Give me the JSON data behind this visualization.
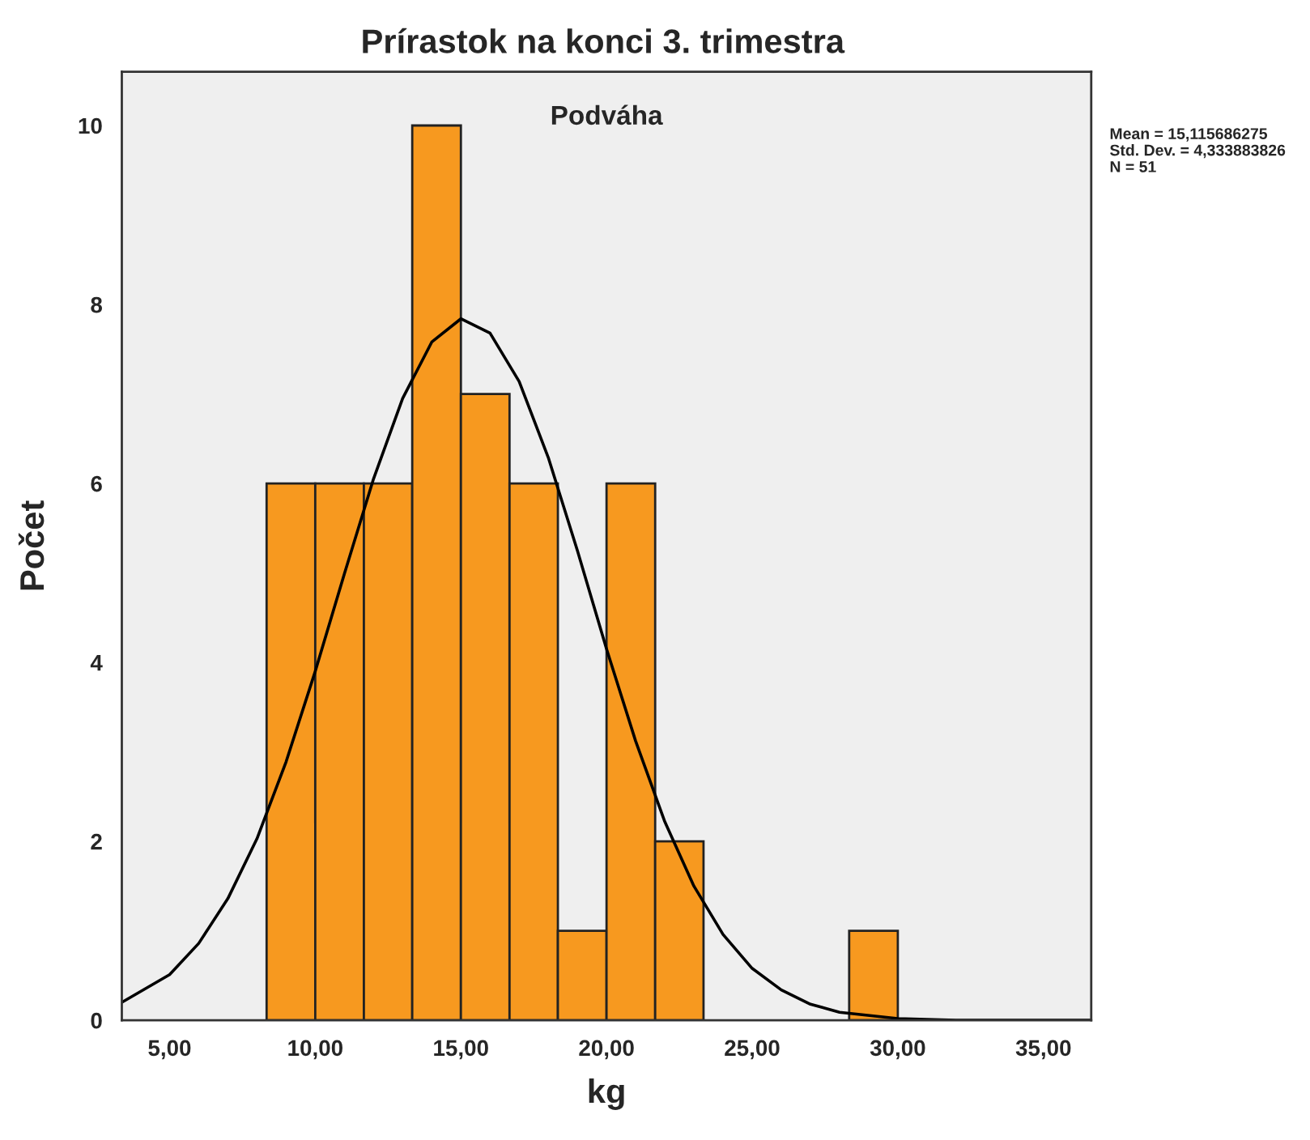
{
  "chart_data": {
    "type": "histogram",
    "title": "Prírastok na konci 3. trimestra",
    "xlabel": "kg",
    "ylabel": "Počet",
    "bins": [
      8.33,
      10,
      11.67,
      13.33,
      15,
      16.67,
      18.33,
      20,
      21.67,
      23.33,
      25,
      26.67,
      28.33,
      30
    ],
    "values": [
      6,
      6,
      6,
      10,
      7,
      6,
      1,
      6,
      2,
      0,
      0,
      0,
      1
    ],
    "color": "#f7991f",
    "series": [
      {
        "type": "line",
        "color": "#000000",
        "x": [
          3.36,
          5,
          6,
          7,
          8,
          9,
          10,
          11,
          12,
          13,
          14,
          15,
          16,
          17,
          18,
          19,
          20,
          21,
          22,
          23,
          24,
          25,
          26,
          27,
          28,
          30,
          32,
          36.64
        ],
        "values": [
          0.2,
          0.51,
          0.86,
          1.36,
          2.03,
          2.89,
          3.9,
          4.99,
          6.05,
          6.95,
          7.58,
          7.84,
          7.68,
          7.14,
          6.29,
          5.25,
          4.15,
          3.12,
          2.22,
          1.5,
          0.96,
          0.58,
          0.34,
          0.18,
          0.09,
          0.02,
          0.0,
          0.0
        ]
      }
    ],
    "xlim": [
      3.36,
      36.64
    ],
    "ylim": [
      0,
      10.6
    ],
    "xticks": [
      {
        "value": 5,
        "label": "5,00"
      },
      {
        "value": 10,
        "label": "10,00"
      },
      {
        "value": 15,
        "label": "15,00"
      },
      {
        "value": 20,
        "label": "20,00"
      },
      {
        "value": 25,
        "label": "25,00"
      },
      {
        "value": 30,
        "label": "30,00"
      },
      {
        "value": 35,
        "label": "35,00"
      }
    ],
    "yticks": [
      0,
      2,
      4,
      6,
      8,
      10
    ],
    "grid": false,
    "legend": false,
    "annotations": [
      "Podváha",
      "Mean = 15,115686275",
      "Std. Dev. = 4,333883826",
      "N = 51"
    ]
  }
}
